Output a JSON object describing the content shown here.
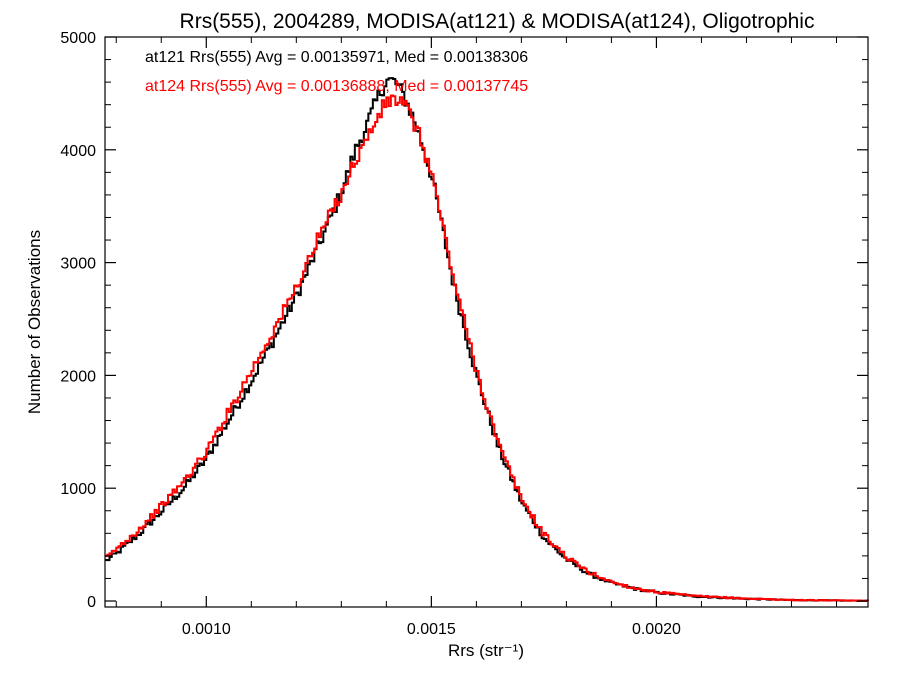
{
  "chart_data": {
    "type": "line",
    "title": "Rrs(555), 2004289, MODISA(at121) & MODISA(at124), Oligotrophic",
    "xlabel": "Rrs (str⁻¹)",
    "ylabel": "Number of Observations",
    "xlim": [
      0.000775,
      0.00247
    ],
    "ylim": [
      0,
      5000
    ],
    "x_ticks": [
      "0.0010",
      "0.0015",
      "0.0020"
    ],
    "y_ticks": [
      "0",
      "1000",
      "2000",
      "3000",
      "4000",
      "5000"
    ],
    "grid": false,
    "legend_position": "top-left",
    "series": [
      {
        "name": "at121 Rrs(555) Avg = 0.00135971, Med = 0.00138306",
        "color": "#000000",
        "x": [
          0.000775,
          0.0008,
          0.00085,
          0.0009,
          0.00095,
          0.001,
          0.00105,
          0.0011,
          0.00115,
          0.0012,
          0.00125,
          0.0013,
          0.00133,
          0.00136,
          0.00138,
          0.0014,
          0.00142,
          0.00144,
          0.00146,
          0.00148,
          0.0015,
          0.00152,
          0.00155,
          0.0016,
          0.00165,
          0.0017,
          0.00175,
          0.0018,
          0.00185,
          0.0019,
          0.00195,
          0.002,
          0.00205,
          0.0021,
          0.0022,
          0.0023,
          0.00247
        ],
        "y": [
          350,
          420,
          590,
          790,
          1000,
          1260,
          1600,
          1950,
          2320,
          2700,
          3150,
          3620,
          3980,
          4250,
          4450,
          4620,
          4600,
          4470,
          4280,
          4050,
          3780,
          3400,
          2800,
          2000,
          1350,
          880,
          560,
          370,
          240,
          160,
          110,
          75,
          55,
          38,
          20,
          8,
          2
        ]
      },
      {
        "name": "at124 Rrs(555) Avg = 0.00136888, Med = 0.00137745",
        "color": "#ff0000",
        "x": [
          0.000775,
          0.0008,
          0.00085,
          0.0009,
          0.00095,
          0.001,
          0.00105,
          0.0011,
          0.00115,
          0.0012,
          0.00125,
          0.0013,
          0.00133,
          0.00136,
          0.00138,
          0.0014,
          0.00142,
          0.00144,
          0.00146,
          0.00148,
          0.0015,
          0.00152,
          0.00155,
          0.0016,
          0.00165,
          0.0017,
          0.00175,
          0.0018,
          0.00185,
          0.0019,
          0.00195,
          0.002,
          0.00205,
          0.0021,
          0.0022,
          0.0023,
          0.00247
        ],
        "y": [
          370,
          460,
          630,
          840,
          1060,
          1320,
          1680,
          2040,
          2400,
          2780,
          3220,
          3620,
          3900,
          4120,
          4280,
          4420,
          4450,
          4400,
          4250,
          4050,
          3800,
          3430,
          2850,
          2050,
          1380,
          910,
          590,
          390,
          255,
          170,
          115,
          80,
          58,
          40,
          22,
          9,
          2
        ]
      }
    ]
  }
}
